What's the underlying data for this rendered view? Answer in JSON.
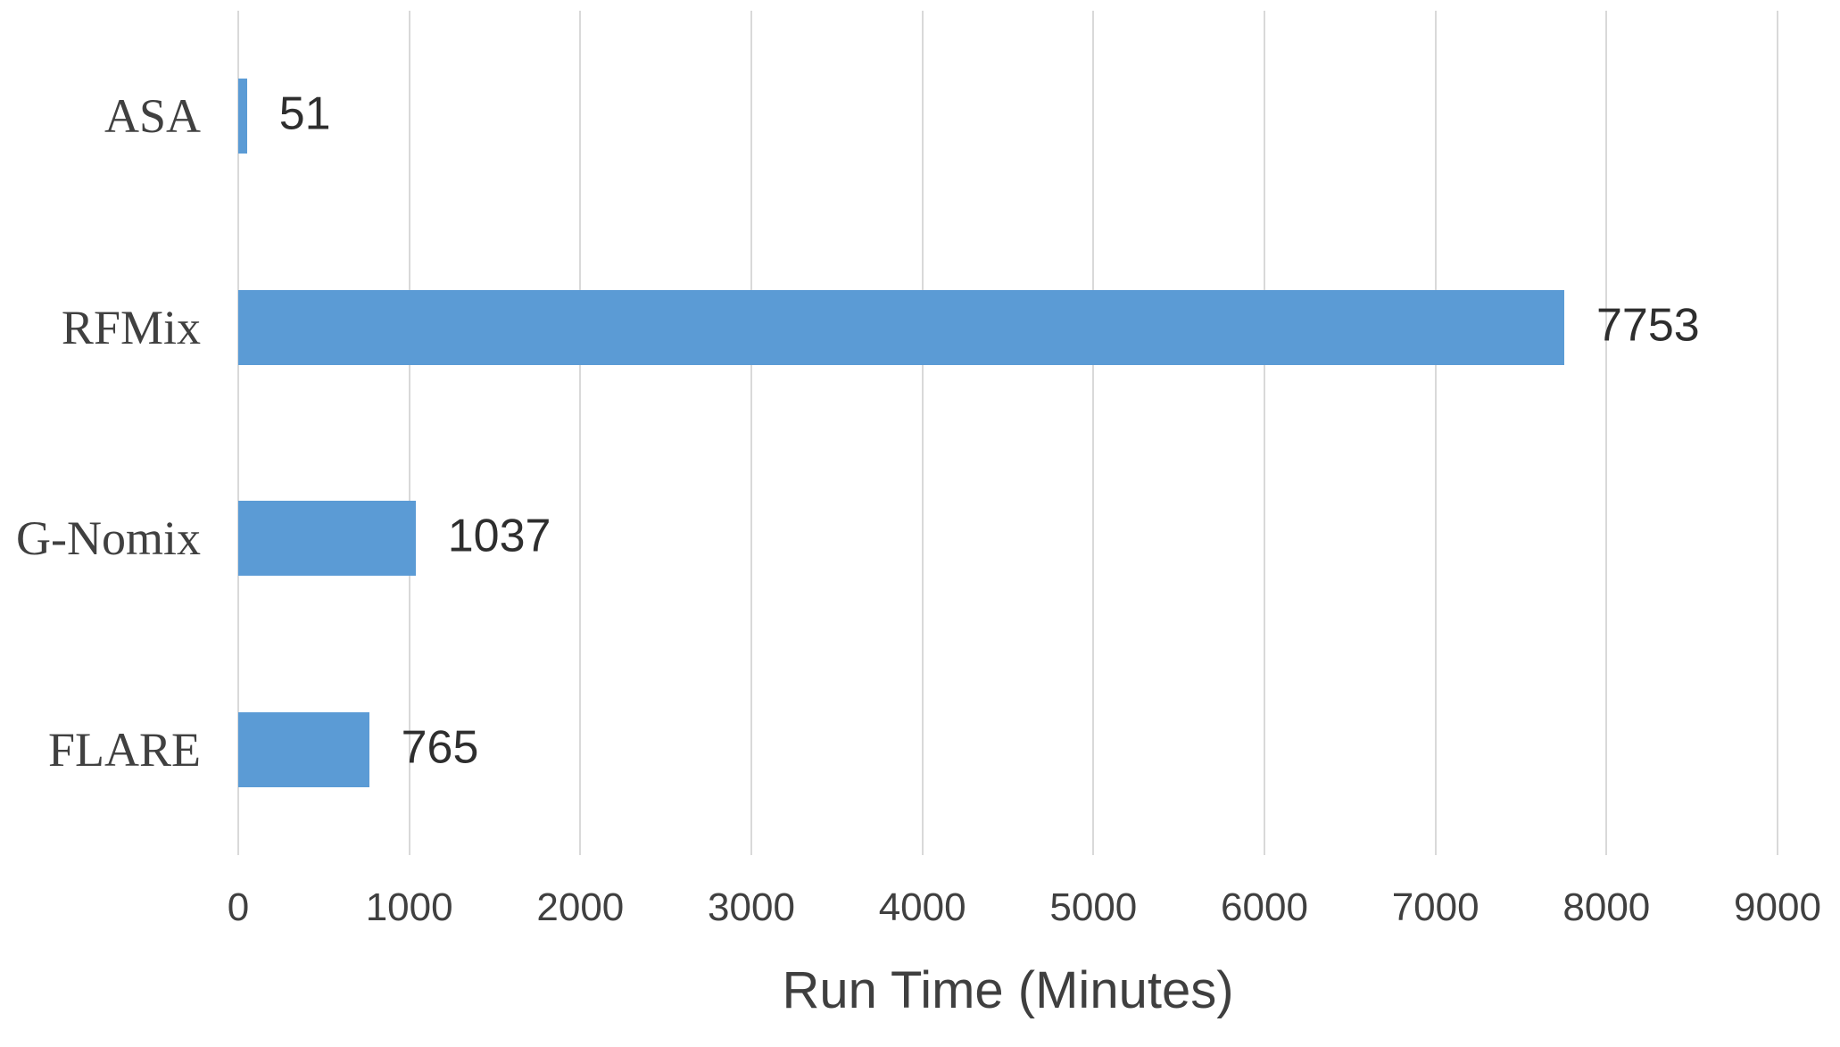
{
  "chart_data": {
    "type": "bar",
    "orientation": "horizontal",
    "categories": [
      "ASA",
      "RFMix",
      "G-Nomix",
      "FLARE"
    ],
    "values": [
      51,
      7753,
      1037,
      765
    ],
    "title": "",
    "xlabel": "Run Time (Minutes)",
    "ylabel": "",
    "xlim": [
      0,
      9000
    ],
    "xticks": [
      0,
      1000,
      2000,
      3000,
      4000,
      5000,
      6000,
      7000,
      8000,
      9000
    ],
    "grid": true,
    "legend": false,
    "data_labels_shown": true,
    "colors": {
      "bar": "#5b9bd5",
      "gridline": "#d9d9d9",
      "category_label": "#404040",
      "value_label": "#2e2e2e",
      "tick_label": "#404040",
      "axis_title": "#3f3f3f",
      "background": "#ffffff"
    }
  }
}
